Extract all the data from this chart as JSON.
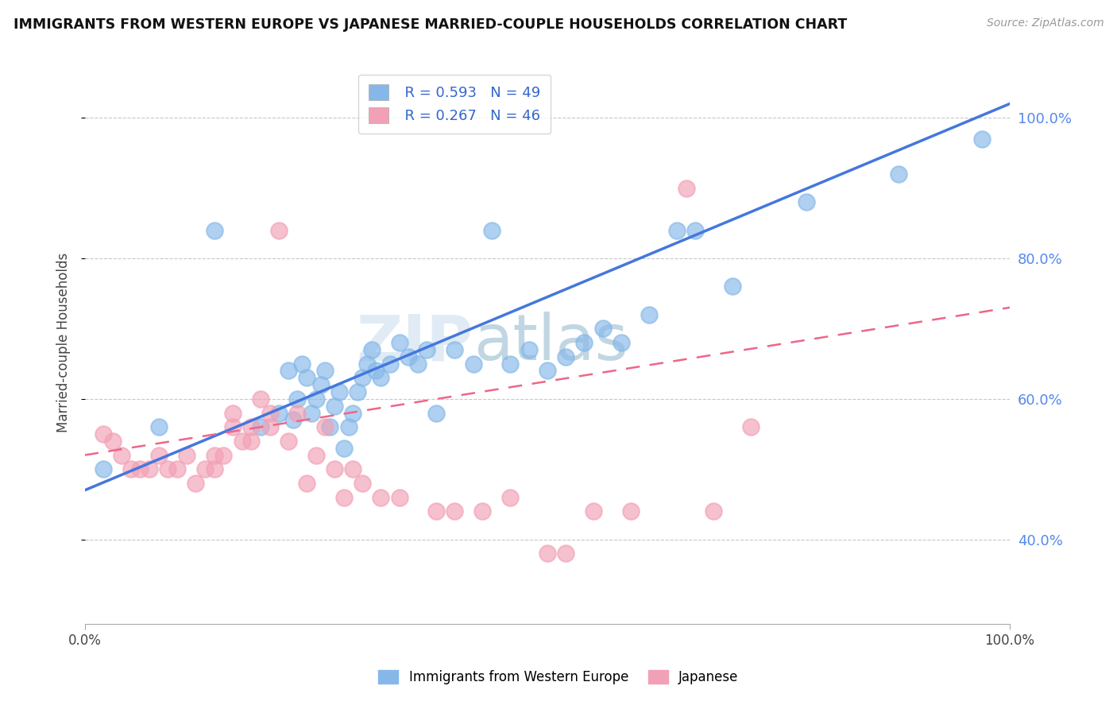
{
  "title": "IMMIGRANTS FROM WESTERN EUROPE VS JAPANESE MARRIED-COUPLE HOUSEHOLDS CORRELATION CHART",
  "source": "Source: ZipAtlas.com",
  "ylabel": "Married-couple Households",
  "xlim": [
    0.0,
    1.0
  ],
  "ylim": [
    0.28,
    1.08
  ],
  "x_tick_labels": [
    "0.0%",
    "100.0%"
  ],
  "y_tick_labels_right": [
    "40.0%",
    "60.0%",
    "80.0%",
    "100.0%"
  ],
  "y_ticks_right": [
    0.4,
    0.6,
    0.8,
    1.0
  ],
  "blue_R": "R = 0.593",
  "blue_N": "N = 49",
  "pink_R": "R = 0.267",
  "pink_N": "N = 46",
  "blue_color": "#85B8E8",
  "pink_color": "#F2A0B5",
  "blue_line_color": "#4477DD",
  "pink_line_color": "#EE6688",
  "watermark_color": "#D0E4F5",
  "legend_label_blue": "Immigrants from Western Europe",
  "legend_label_pink": "Japanese",
  "blue_scatter_x": [
    0.02,
    0.08,
    0.14,
    0.19,
    0.21,
    0.22,
    0.225,
    0.23,
    0.235,
    0.24,
    0.245,
    0.25,
    0.255,
    0.26,
    0.265,
    0.27,
    0.275,
    0.28,
    0.285,
    0.29,
    0.295,
    0.3,
    0.305,
    0.31,
    0.315,
    0.32,
    0.33,
    0.34,
    0.35,
    0.36,
    0.37,
    0.38,
    0.4,
    0.42,
    0.44,
    0.46,
    0.48,
    0.5,
    0.52,
    0.54,
    0.56,
    0.58,
    0.61,
    0.64,
    0.66,
    0.7,
    0.78,
    0.88,
    0.97
  ],
  "blue_scatter_y": [
    0.5,
    0.56,
    0.84,
    0.56,
    0.58,
    0.64,
    0.57,
    0.6,
    0.65,
    0.63,
    0.58,
    0.6,
    0.62,
    0.64,
    0.56,
    0.59,
    0.61,
    0.53,
    0.56,
    0.58,
    0.61,
    0.63,
    0.65,
    0.67,
    0.64,
    0.63,
    0.65,
    0.68,
    0.66,
    0.65,
    0.67,
    0.58,
    0.67,
    0.65,
    0.84,
    0.65,
    0.67,
    0.64,
    0.66,
    0.68,
    0.7,
    0.68,
    0.72,
    0.84,
    0.84,
    0.76,
    0.88,
    0.92,
    0.97
  ],
  "pink_scatter_x": [
    0.02,
    0.03,
    0.04,
    0.05,
    0.06,
    0.07,
    0.08,
    0.09,
    0.1,
    0.11,
    0.12,
    0.13,
    0.14,
    0.14,
    0.15,
    0.16,
    0.16,
    0.17,
    0.18,
    0.18,
    0.19,
    0.2,
    0.2,
    0.21,
    0.22,
    0.23,
    0.24,
    0.25,
    0.26,
    0.27,
    0.28,
    0.29,
    0.3,
    0.32,
    0.34,
    0.38,
    0.4,
    0.43,
    0.46,
    0.5,
    0.52,
    0.55,
    0.59,
    0.65,
    0.68,
    0.72
  ],
  "pink_scatter_y": [
    0.55,
    0.54,
    0.52,
    0.5,
    0.5,
    0.5,
    0.52,
    0.5,
    0.5,
    0.52,
    0.48,
    0.5,
    0.5,
    0.52,
    0.52,
    0.56,
    0.58,
    0.54,
    0.54,
    0.56,
    0.6,
    0.56,
    0.58,
    0.84,
    0.54,
    0.58,
    0.48,
    0.52,
    0.56,
    0.5,
    0.46,
    0.5,
    0.48,
    0.46,
    0.46,
    0.44,
    0.44,
    0.44,
    0.46,
    0.38,
    0.38,
    0.44,
    0.44,
    0.9,
    0.44,
    0.56
  ],
  "blue_line_x0": 0.0,
  "blue_line_y0": 0.47,
  "blue_line_x1": 1.0,
  "blue_line_y1": 1.02,
  "pink_line_x0": 0.0,
  "pink_line_y0": 0.52,
  "pink_line_x1": 1.0,
  "pink_line_y1": 0.73
}
